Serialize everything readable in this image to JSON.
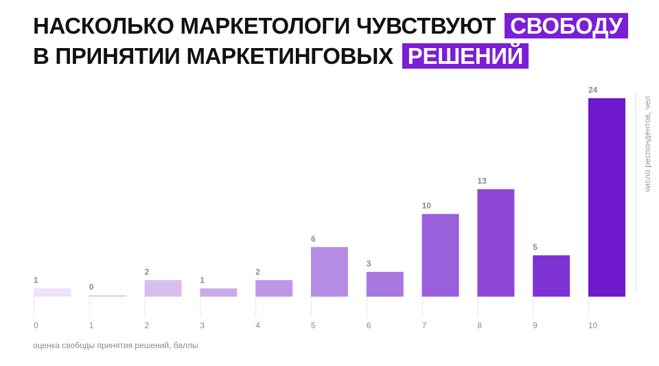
{
  "title": {
    "line1": "НАСКОЛЬКО МАРКЕТОЛОГИ ЧУВСТВУЮТ",
    "line1_highlight": "СВОБОДУ",
    "line2": "В ПРИНЯТИИ МАРКЕТИНГОВЫХ",
    "line2_highlight": "РЕШЕНИЙ"
  },
  "chart_data": {
    "type": "bar",
    "categories": [
      "0",
      "1",
      "2",
      "3",
      "4",
      "5",
      "6",
      "7",
      "8",
      "9",
      "10"
    ],
    "values": [
      1,
      0,
      2,
      1,
      2,
      6,
      3,
      10,
      13,
      5,
      24
    ],
    "xlabel": "оценка свободы принятия решений, баллы",
    "ylabel": "число респондентов, чел",
    "ylim": [
      0,
      24
    ],
    "grid": false,
    "colors": [
      "#ede2f8",
      "#dccaf2",
      "#d6bff0",
      "#c9abeb",
      "#bd97e6",
      "#b58ce3",
      "#a877df",
      "#9a5fdb",
      "#8d48d8",
      "#7f32d4",
      "#6f18cc"
    ]
  }
}
